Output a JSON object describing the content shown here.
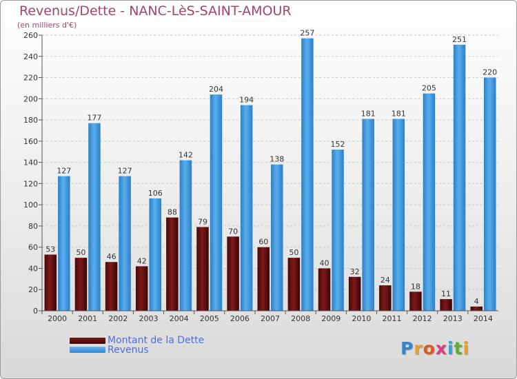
{
  "title": "Revenus/Dette - NANC-LèS-SAINT-AMOUR",
  "unit_label": "(en milliers d'€)",
  "chart_data": {
    "type": "bar",
    "categories": [
      "2000",
      "2001",
      "2002",
      "2003",
      "2004",
      "2005",
      "2006",
      "2007",
      "2008",
      "2009",
      "2010",
      "2011",
      "2012",
      "2013",
      "2014"
    ],
    "series": [
      {
        "name": "Montant de la Dette",
        "color": "#5a0d0d",
        "values": [
          53,
          50,
          46,
          42,
          88,
          79,
          70,
          60,
          50,
          40,
          32,
          24,
          18,
          11,
          4
        ]
      },
      {
        "name": "Revenus",
        "color": "#3d92d8",
        "values": [
          127,
          177,
          127,
          106,
          142,
          204,
          194,
          138,
          257,
          152,
          181,
          181,
          205,
          251,
          220
        ]
      }
    ],
    "ylim": [
      0,
      260
    ],
    "yticks": [
      0,
      20,
      40,
      60,
      80,
      100,
      120,
      140,
      160,
      180,
      200,
      220,
      240,
      260
    ],
    "grid": true,
    "legend_position": "bottom-left"
  },
  "legend": {
    "dette": "Montant de la Dette",
    "revenus": "Revenus"
  },
  "logo": {
    "letters": [
      "P",
      "r",
      "o",
      "x",
      "i",
      "t",
      "i"
    ],
    "colors": [
      "#2f86cd",
      "#e8a020",
      "#e05a1a",
      "#e03a80",
      "#2fa0d0",
      "#60b030",
      "#e8a020"
    ]
  }
}
